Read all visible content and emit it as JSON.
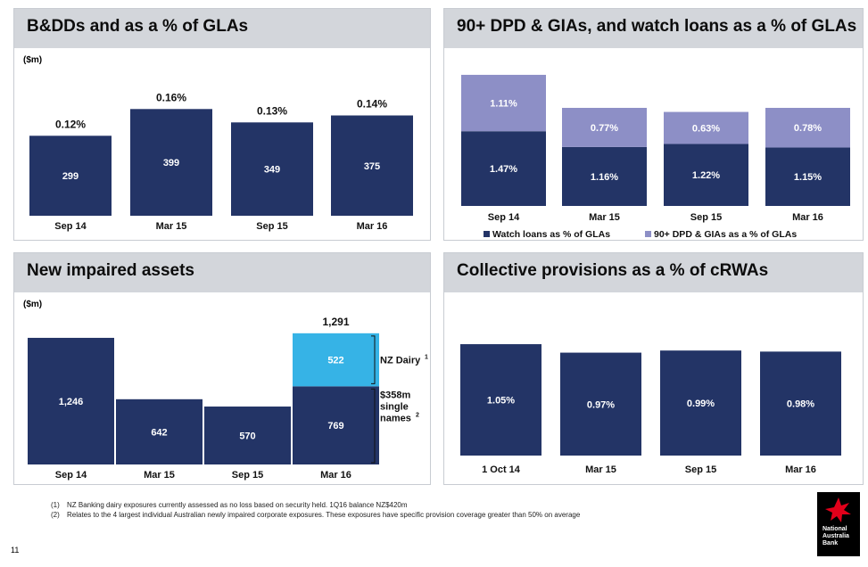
{
  "page_number": "11",
  "colors": {
    "navy": "#233466",
    "lavender": "#8d8fc6",
    "cyan": "#36b3e6",
    "header": "#d3d6db"
  },
  "panels": [
    {
      "title": "B&DDs and as a % of GLAs",
      "unit": "($m)"
    },
    {
      "title": "90+ DPD & GIAs, and watch loans as a % of GLAs",
      "unit": ""
    },
    {
      "title": "New impaired assets",
      "unit": "($m)"
    },
    {
      "title": "Collective provisions as a % of cRWAs",
      "unit": ""
    }
  ],
  "chart_data": [
    {
      "type": "bar",
      "title": "B&DDs and as a % of GLAs",
      "ylabel": "($m)",
      "categories": [
        "Sep 14",
        "Mar 15",
        "Sep 15",
        "Mar 16"
      ],
      "values": [
        299,
        399,
        349,
        375
      ],
      "value_labels": [
        "299",
        "399",
        "349",
        "375"
      ],
      "top_labels": [
        "0.12%",
        "0.16%",
        "0.13%",
        "0.14%"
      ],
      "ylim": [
        0,
        420
      ]
    },
    {
      "type": "bar",
      "stacked": true,
      "title": "90+ DPD & GIAs, and watch loans as a % of GLAs",
      "categories": [
        "Sep 14",
        "Mar 15",
        "Sep 15",
        "Mar 16"
      ],
      "series": [
        {
          "name": "Watch loans as % of GLAs",
          "values": [
            1.47,
            1.16,
            1.22,
            1.15
          ],
          "labels": [
            "1.47%",
            "1.16%",
            "1.22%",
            "1.15%"
          ],
          "color": "#233466"
        },
        {
          "name": "90+ DPD & GIAs as a % of GLAs",
          "values": [
            1.11,
            0.77,
            0.63,
            0.78
          ],
          "labels": [
            "1.11%",
            "0.77%",
            "0.63%",
            "0.78%"
          ],
          "color": "#8d8fc6"
        }
      ],
      "ylim": [
        0,
        2.6
      ],
      "legend": "bottom"
    },
    {
      "type": "bar",
      "stacked": true,
      "title": "New impaired assets",
      "ylabel": "($m)",
      "categories": [
        "Sep 14",
        "Mar 15",
        "Sep 15",
        "Mar 16"
      ],
      "series": [
        {
          "values": [
            1246,
            642,
            570,
            769
          ],
          "labels": [
            "1,246",
            "642",
            "570",
            "769"
          ],
          "color": "#233466"
        },
        {
          "values": [
            0,
            0,
            0,
            522
          ],
          "labels": [
            "",
            "",
            "",
            "522"
          ],
          "color": "#36b3e6"
        }
      ],
      "totals": [
        "",
        "",
        "",
        "1,291"
      ],
      "annotations": [
        {
          "lines": [
            "NZ Dairy"
          ],
          "sup": "1"
        },
        {
          "lines": [
            "$358m",
            "single",
            "names"
          ],
          "sup": "2"
        }
      ],
      "ylim": [
        0,
        1400
      ]
    },
    {
      "type": "bar",
      "title": "Collective provisions as a % of cRWAs",
      "categories": [
        "1 Oct 14",
        "Mar 15",
        "Sep 15",
        "Mar 16"
      ],
      "values": [
        1.05,
        0.97,
        0.99,
        0.98
      ],
      "value_labels": [
        "1.05%",
        "0.97%",
        "0.99%",
        "0.98%"
      ],
      "ylim": [
        0,
        1.3
      ]
    }
  ],
  "footnotes": [
    {
      "num": "(1)",
      "text": "NZ Banking dairy exposures currently assessed as no loss based on security held. 1Q16 balance NZ$420m"
    },
    {
      "num": "(2)",
      "text": "Relates to the 4 largest individual Australian newly impaired corporate exposures. These exposures have specific provision coverage greater than 50% on average"
    }
  ],
  "logo": {
    "lines": [
      "National",
      "Australia",
      "Bank"
    ],
    "icon": "star-icon"
  }
}
